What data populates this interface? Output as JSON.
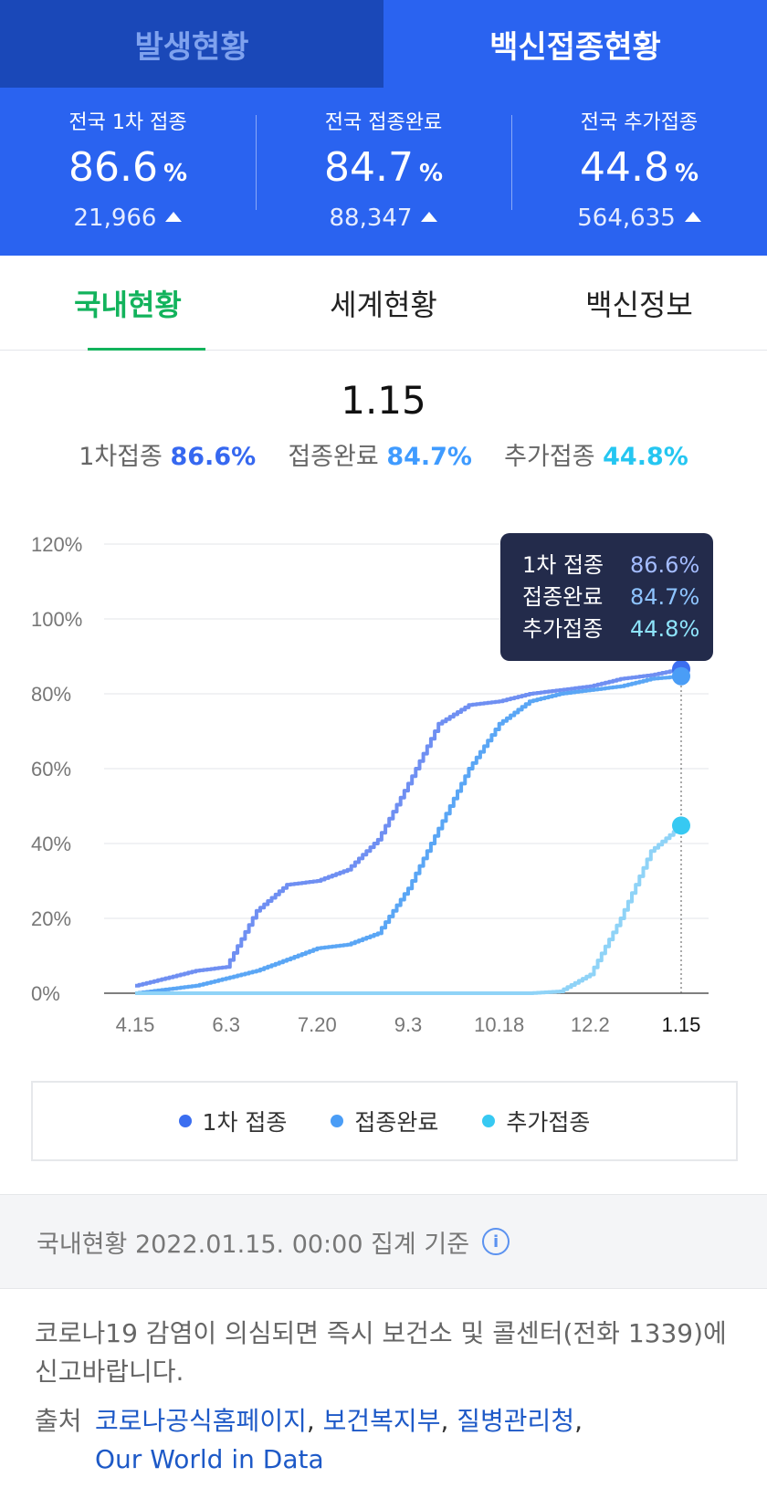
{
  "top_tabs": [
    {
      "label": "발생현황"
    },
    {
      "label": "백신접종현황"
    }
  ],
  "stats": [
    {
      "label": "전국 1차 접종",
      "value": "86.6",
      "unit": "%",
      "delta": "21,966"
    },
    {
      "label": "전국 접종완료",
      "value": "84.7",
      "unit": "%",
      "delta": "88,347"
    },
    {
      "label": "전국 추가접종",
      "value": "44.8",
      "unit": "%",
      "delta": "564,635"
    }
  ],
  "sub_tabs": [
    {
      "label": "국내현황"
    },
    {
      "label": "세계현황"
    },
    {
      "label": "백신정보"
    }
  ],
  "summary": {
    "date": "1.15",
    "items": [
      {
        "label": "1차접종",
        "value": "86.6%"
      },
      {
        "label": "접종완료",
        "value": "84.7%"
      },
      {
        "label": "추가접종",
        "value": "44.8%"
      }
    ]
  },
  "tooltip": {
    "rows": [
      {
        "label": "1차 접종",
        "value": "86.6%"
      },
      {
        "label": "접종완료",
        "value": "84.7%"
      },
      {
        "label": "추가접종",
        "value": "44.8%"
      }
    ]
  },
  "colors": {
    "first_dose": "#3b6ef0",
    "complete": "#4a9df6",
    "booster": "#37c9f2",
    "first_dose_line": "#6f8ff2",
    "complete_line": "#5aa6f5",
    "booster_line": "#8fd3f7"
  },
  "chart_data": {
    "type": "line",
    "x": [
      "4.15",
      "5.1",
      "5.15",
      "6.3",
      "6.15",
      "7.1",
      "7.20",
      "8.1",
      "8.15",
      "9.3",
      "9.20",
      "10.1",
      "10.18",
      "11.1",
      "11.15",
      "12.2",
      "12.15",
      "1.1",
      "1.15"
    ],
    "x_tick_labels": [
      "4.15",
      "6.3",
      "7.20",
      "9.3",
      "10.18",
      "12.2",
      "1.15"
    ],
    "y_tick_labels": [
      "0%",
      "20%",
      "40%",
      "60%",
      "80%",
      "100%",
      "120%"
    ],
    "ylim": [
      0,
      120
    ],
    "highlight_x": "1.15",
    "grid": true,
    "series": [
      {
        "name": "1차 접종",
        "values": [
          2,
          4,
          6,
          7,
          22,
          29,
          30,
          33,
          41,
          56,
          72,
          77,
          78,
          80,
          81,
          82,
          84,
          85,
          86.6
        ]
      },
      {
        "name": "접종완료",
        "values": [
          0,
          1,
          2,
          4,
          6,
          9,
          12,
          13,
          16,
          28,
          44,
          60,
          72,
          78,
          80,
          81,
          82,
          84,
          84.7
        ]
      },
      {
        "name": "추가접종",
        "values": [
          0,
          0,
          0,
          0,
          0,
          0,
          0,
          0,
          0,
          0,
          0,
          0,
          0,
          0,
          0.5,
          5,
          20,
          38,
          44.8
        ]
      }
    ]
  },
  "legend": [
    {
      "label": "1차 접종"
    },
    {
      "label": "접종완료"
    },
    {
      "label": "추가접종"
    }
  ],
  "note": {
    "text": "국내현황 2022.01.15. 00:00 집계 기준",
    "icon": "info-icon"
  },
  "footer": {
    "text": "코로나19 감염이 의심되면 즉시 보건소 및 콜센터(전화 1339)에 신고바랍니다.",
    "source_label": "출처",
    "links": [
      "코로나공식홈페이지",
      "보건복지부",
      "질병관리청",
      "Our World in Data"
    ]
  }
}
